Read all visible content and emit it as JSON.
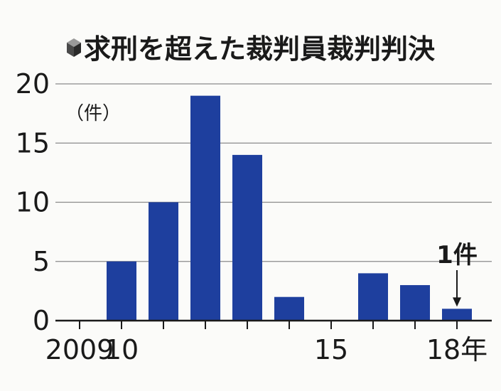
{
  "chart_data": {
    "type": "bar",
    "title": "求刑を超えた裁判員裁判判決",
    "ylabel": "（件）",
    "x": [
      2009,
      2010,
      2011,
      2012,
      2013,
      2014,
      2015,
      2016,
      2017,
      2018
    ],
    "values": [
      0,
      5,
      10,
      19,
      14,
      2,
      0,
      4,
      3,
      1
    ],
    "ylim": [
      0,
      20
    ],
    "yticks": [
      0,
      5,
      10,
      15,
      20
    ],
    "xtick_labels": [
      {
        "x": 2009,
        "label": "2009"
      },
      {
        "x": 2010,
        "label": "10"
      },
      {
        "x": 2015,
        "label": "15"
      },
      {
        "x": 2018,
        "label": "18年"
      }
    ],
    "annotation": {
      "x": 2018,
      "text": "1件"
    },
    "bar_color": "#1e3f9e",
    "grid": true
  }
}
